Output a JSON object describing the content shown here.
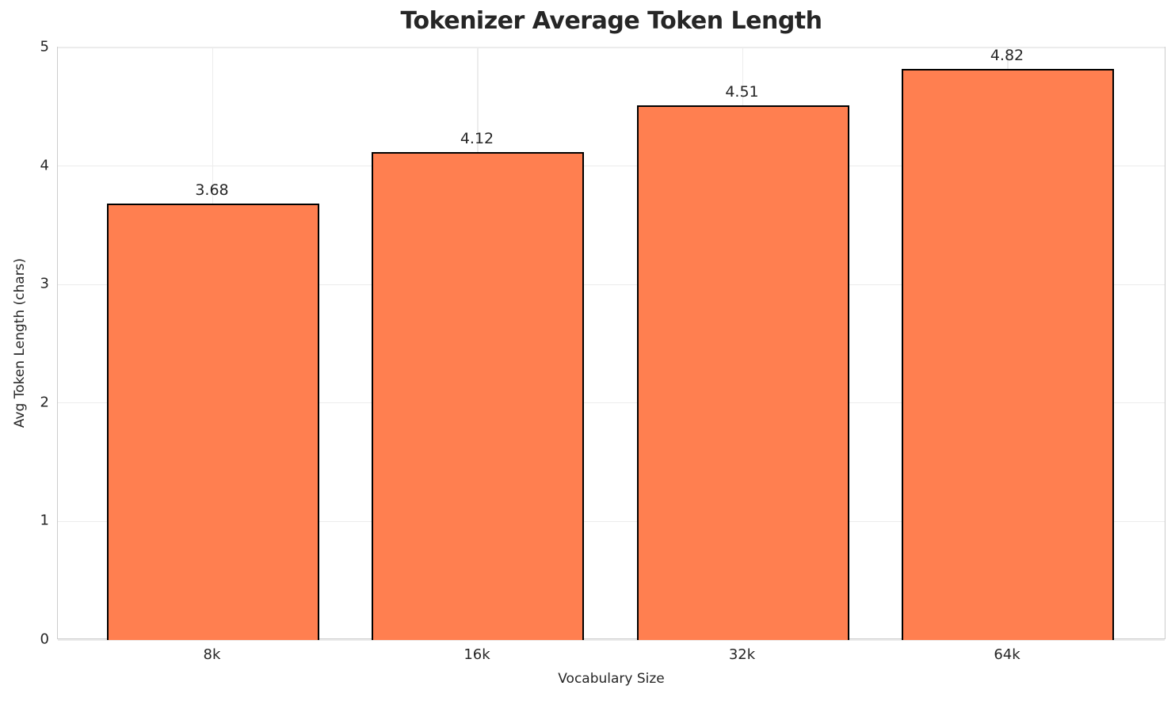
{
  "chart_data": {
    "type": "bar",
    "title": "Tokenizer Average Token Length",
    "xlabel": "Vocabulary Size",
    "ylabel": "Avg Token Length (chars)",
    "categories": [
      "8k",
      "16k",
      "32k",
      "64k"
    ],
    "values": [
      3.68,
      4.12,
      4.51,
      4.82
    ],
    "value_labels": [
      "3.68",
      "4.12",
      "4.51",
      "4.82"
    ],
    "y_ticks": [
      0,
      1,
      2,
      3,
      4,
      5
    ],
    "ylim": [
      0,
      5
    ],
    "grid": "both-light",
    "legend": "none",
    "colors": {
      "bar_fill": "#FF7F50",
      "bar_edge": "#000000",
      "grid": "#ececec",
      "spine": "#cccccc",
      "text": "#262626",
      "background": "#ffffff"
    }
  }
}
